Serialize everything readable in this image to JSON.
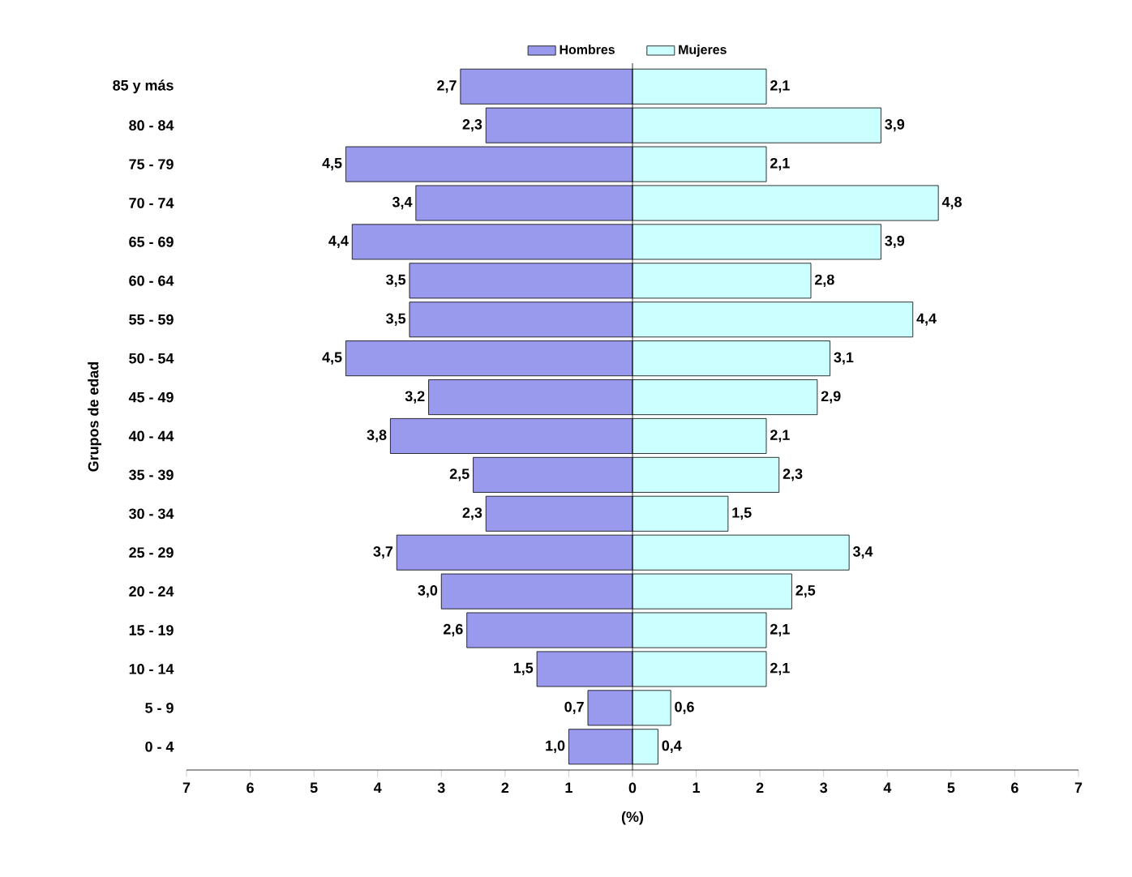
{
  "chart_data": [
    {
      "type": "bar",
      "orientation": "horizontal",
      "ylabel": "Grupos de edad",
      "xlabel": "(%)",
      "legend": "top right",
      "categories": [
        "85 y más",
        "80 - 84",
        "75 - 79",
        "70 - 74",
        "65 - 69",
        "60 - 64",
        "55 - 59",
        "50 - 54",
        "45 - 49",
        "40 - 44",
        "35 - 39",
        "30 - 34",
        "25 - 29",
        "20 - 24",
        "15 - 19",
        "10 - 14",
        "5 - 9",
        "0 - 4"
      ],
      "series": [
        {
          "name": "Hombres",
          "color": "#9999ee",
          "values": [
            2.7,
            2.3,
            4.5,
            3.4,
            4.4,
            3.5,
            3.5,
            4.5,
            3.2,
            3.8,
            2.5,
            2.3,
            3.7,
            3.0,
            2.6,
            1.5,
            0.7,
            1.0
          ],
          "value_labels": [
            "2,7",
            "2,3",
            "4,5",
            "3,4",
            "4,4",
            "3,5",
            "3,5",
            "4,5",
            "3,2",
            "3,8",
            "2,5",
            "2,3",
            "3,7",
            "3,0",
            "2,6",
            "1,5",
            "0,7",
            "1,0"
          ]
        }
      ],
      "xlim": [
        7,
        0
      ],
      "xticks": [
        7,
        6,
        5,
        4,
        3,
        2,
        1,
        0
      ]
    },
    {
      "type": "bar",
      "orientation": "horizontal",
      "legend": "top left",
      "categories": [
        null,
        null,
        null,
        null,
        null,
        null,
        null,
        null,
        null,
        null,
        null,
        null,
        null,
        null,
        null,
        null,
        null,
        null
      ],
      "series": [
        {
          "name": "Mujeres",
          "color": "#ccffff",
          "values": [
            2.1,
            3.9,
            2.1,
            4.8,
            3.9,
            2.8,
            4.4,
            3.1,
            2.9,
            2.1,
            2.3,
            1.5,
            3.4,
            2.5,
            2.1,
            2.1,
            0.6,
            0.4
          ],
          "value_labels": [
            "2,1",
            "3,9",
            "2,1",
            "4,8",
            "3,9",
            "2,8",
            "4,4",
            "3,1",
            "2,9",
            "2,1",
            "2,3",
            "1,5",
            "3,4",
            "2,5",
            "2,1",
            "2,1",
            "0,6",
            "0,4"
          ]
        }
      ],
      "xlim": [
        0,
        7
      ],
      "xticks": [
        {
          "value": 0,
          "label": null
        },
        1,
        2,
        3,
        4,
        5,
        6,
        7
      ]
    }
  ]
}
